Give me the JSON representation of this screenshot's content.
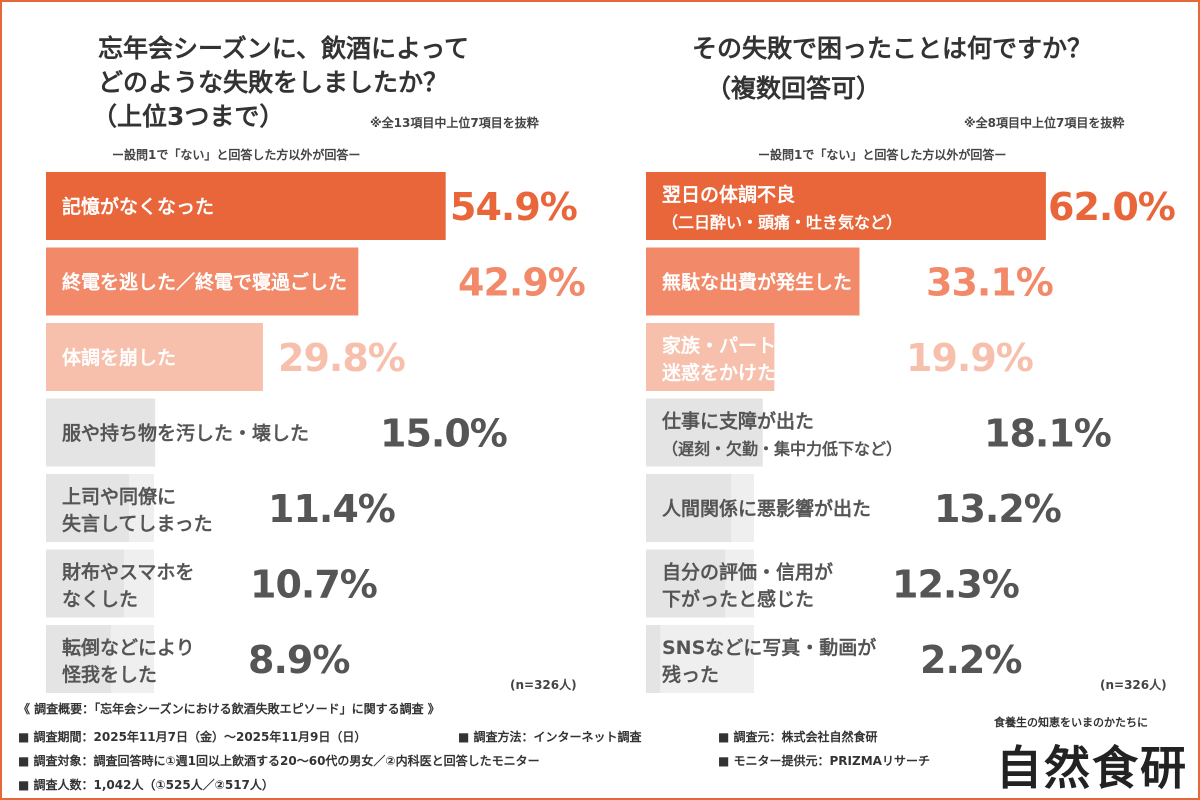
{
  "colors": {
    "rank1": "#e8663a",
    "rank2": "#f28a6a",
    "rank3": "#f7c0ac",
    "other": "#e4e4e4",
    "track": "#efefef",
    "label_light": "#ffffff",
    "label_dark": "#555555",
    "value_other": "#555555",
    "border": "#e8663a"
  },
  "chart_data": [
    {
      "type": "bar",
      "orientation": "horizontal",
      "title_lines": [
        "忘年会シーズンに、飲酒によって",
        "どのような失敗をしましたか？",
        "（上位3つまで）"
      ],
      "note": "※全13項目中上位7項目を抜粋",
      "subnote": "ー設問1で「ない」と回答した方以外が回答ー",
      "n_label": "(n=326人)",
      "xlim": [
        0,
        100
      ],
      "unit": "%",
      "categories": [
        {
          "label": "記憶がなくなった",
          "sub": ""
        },
        {
          "label": "終電を逃した／終電で寝過ごした",
          "sub": ""
        },
        {
          "label": "体調を崩した",
          "sub": ""
        },
        {
          "label": "服や持ち物を汚した・壊した",
          "sub": ""
        },
        {
          "label": "上司や同僚に",
          "sub": "失言してしまった"
        },
        {
          "label": "財布やスマホを",
          "sub": "なくした"
        },
        {
          "label": "転倒などにより",
          "sub": "怪我をした"
        }
      ],
      "values": [
        54.9,
        42.9,
        29.8,
        15.0,
        11.4,
        10.7,
        8.9
      ],
      "value_labels": [
        "54.9%",
        "42.9%",
        "29.8%",
        "15.0%",
        "11.4%",
        "10.7%",
        "8.9%"
      ]
    },
    {
      "type": "bar",
      "orientation": "horizontal",
      "title_lines": [
        "その失敗で困ったことは何ですか？",
        "（複数回答可）"
      ],
      "note": "※全8項目中上位7項目を抜粋",
      "subnote": "ー設問1で「ない」と回答した方以外が回答ー",
      "n_label": "(n=326人)",
      "xlim": [
        0,
        100
      ],
      "unit": "%",
      "categories": [
        {
          "label": "翌日の体調不良",
          "sub": "（二日酔い・頭痛・吐き気など）"
        },
        {
          "label": "無駄な出費が発生した",
          "sub": ""
        },
        {
          "label": "家族・パートナーに",
          "sub": "迷惑をかけた"
        },
        {
          "label": "仕事に支障が出た",
          "sub": "（遅刻・欠勤・集中力低下など）"
        },
        {
          "label": "人間関係に悪影響が出た",
          "sub": ""
        },
        {
          "label": "自分の評価・信用が",
          "sub": "下がったと感じた"
        },
        {
          "label": "SNSなどに写真・動画が",
          "sub": "残った"
        }
      ],
      "values": [
        62.0,
        33.1,
        19.9,
        18.1,
        13.2,
        12.3,
        2.2
      ],
      "value_labels": [
        "62.0%",
        "33.1%",
        "19.9%",
        "18.1%",
        "13.2%",
        "12.3%",
        "2.2%"
      ]
    }
  ],
  "footer": {
    "heading": "《 調査概要：「忘年会シーズンにおける飲酒失敗エピソード」に関する調査 》",
    "items": [
      "■ 調査期間：2025年11月7日（金）〜2025年11月9日（日）",
      "■ 調査方法：インターネット調査",
      "■ 調査元：株式会社自然食研",
      "■ 調査対象：調査回答時に①週1回以上飲酒する20〜60代の男女／②内科医と回答したモニター",
      "■ モニター提供元：PRIZMAリサーチ",
      "■ 調査人数：1,042人（①525人／②517人）"
    ]
  },
  "brand": {
    "tagline": "食養生の知恵をいまのかたちに",
    "logo": "自然食研"
  }
}
